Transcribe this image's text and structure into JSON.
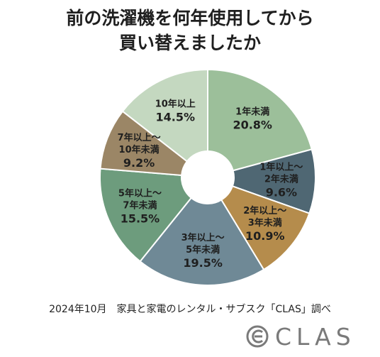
{
  "title": {
    "line1": "前の洗濯機を何年使用してから",
    "line2": "買い替えましたか"
  },
  "source": "2024年10月　家具と家電のレンタル・サブスク「CLAS」調べ",
  "logo": {
    "text": "CLAS",
    "icon": "clas-logo-icon"
  },
  "chart_data": {
    "type": "pie",
    "donut": true,
    "title": "前の洗濯機を何年使用してから買い替えましたか",
    "legend": "none",
    "slices": [
      {
        "label": [
          "1年未満"
        ],
        "value": 20.8,
        "value_label": "20.8%",
        "color": "#9cbf9a"
      },
      {
        "label": [
          "1年以上～",
          "2年未満"
        ],
        "value": 9.6,
        "value_label": "9.6%",
        "color": "#4f6773"
      },
      {
        "label": [
          "2年以上～",
          "3年未満"
        ],
        "value": 10.9,
        "value_label": "10.9%",
        "color": "#b58c4c"
      },
      {
        "label": [
          "3年以上～",
          "5年未満"
        ],
        "value": 19.5,
        "value_label": "19.5%",
        "color": "#6f8996"
      },
      {
        "label": [
          "5年以上～",
          "7年未満"
        ],
        "value": 15.5,
        "value_label": "15.5%",
        "color": "#6d9c7d"
      },
      {
        "label": [
          "7年以上～",
          "10年未満"
        ],
        "value": 9.2,
        "value_label": "9.2%",
        "color": "#9b8666"
      },
      {
        "label": [
          "10年以上"
        ],
        "value": 14.5,
        "value_label": "14.5%",
        "color": "#c4d8c0"
      }
    ]
  }
}
